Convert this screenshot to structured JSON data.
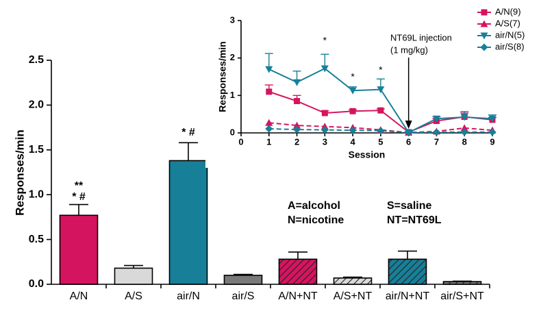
{
  "chart_data": [
    {
      "type": "bar",
      "y_label": "Responses/min",
      "categories": [
        "A/N",
        "A/S",
        "air/N",
        "air/S",
        "A/N+NT",
        "A/S+NT",
        "air/N+NT",
        "air/S+NT"
      ],
      "values": [
        0.77,
        0.18,
        1.38,
        0.1,
        0.28,
        0.07,
        0.28,
        0.03
      ],
      "errors": [
        0.12,
        0.03,
        0.2,
        0.01,
        0.08,
        0.01,
        0.09,
        0.005
      ],
      "colors": [
        "#d5145f",
        "#d9d9d9",
        "#187f98",
        "#7a7a7a",
        "#d5145f",
        "#d9d9d9",
        "#187f98",
        "#7a7a7a"
      ],
      "hatched": [
        false,
        false,
        false,
        false,
        true,
        true,
        true,
        true
      ],
      "ylim": [
        0,
        2.5
      ],
      "yticks": [
        {
          "value": 0,
          "label": "0.0"
        },
        0.5,
        {
          "value": 1,
          "label": "1.0"
        },
        1.5,
        {
          "value": 2,
          "label": "2.0"
        },
        2.5
      ],
      "annotations": [
        "**",
        "* #",
        "* #",
        "A=alcohol",
        "N=nicotine",
        "S=saline",
        "NT=NT69L"
      ]
    },
    {
      "type": "line",
      "x_label": "Session",
      "y_label": "Responses/min",
      "x": [
        1,
        2,
        3,
        4,
        5,
        6,
        7,
        8,
        9
      ],
      "series": [
        {
          "name": "A/N(9)",
          "color": "#d5145f",
          "marker": "square",
          "dashed": false,
          "values": [
            1.1,
            0.85,
            0.53,
            0.58,
            0.6,
            0.02,
            0.32,
            0.43,
            0.35
          ],
          "errors": [
            0.18,
            0.15,
            0.06,
            0.04,
            0.04,
            0.01,
            0.06,
            0.1,
            0.06
          ]
        },
        {
          "name": "A/S(7)",
          "color": "#d5145f",
          "marker": "triangle-up",
          "dashed": true,
          "values": [
            0.27,
            0.2,
            0.17,
            0.14,
            0.08,
            0.01,
            0.04,
            0.13,
            0.07
          ]
        },
        {
          "name": "air/N(5)",
          "color": "#187f98",
          "marker": "triangle-down",
          "dashed": false,
          "values": [
            1.7,
            1.35,
            1.72,
            1.13,
            1.16,
            0.01,
            0.38,
            0.42,
            0.38
          ],
          "errors": [
            0.42,
            0.3,
            0.38,
            0.1,
            0.28,
            0.01,
            0.05,
            0.15,
            0.1
          ]
        },
        {
          "name": "air/S(8)",
          "color": "#187f98",
          "marker": "diamond",
          "dashed": true,
          "values": [
            0.11,
            0.09,
            0.08,
            0.07,
            0.06,
            0.01,
            0.02,
            0.02,
            0.02
          ]
        }
      ],
      "xlim": [
        0,
        9
      ],
      "xticks": [
        0,
        1,
        2,
        3,
        4,
        5,
        6,
        7,
        8,
        9
      ],
      "ylim": [
        0,
        3
      ],
      "yticks": [
        0,
        1,
        2,
        3
      ],
      "annotations": [
        "*",
        "*",
        "*",
        "NT69L injection",
        "(1 mg/kg)"
      ]
    }
  ]
}
